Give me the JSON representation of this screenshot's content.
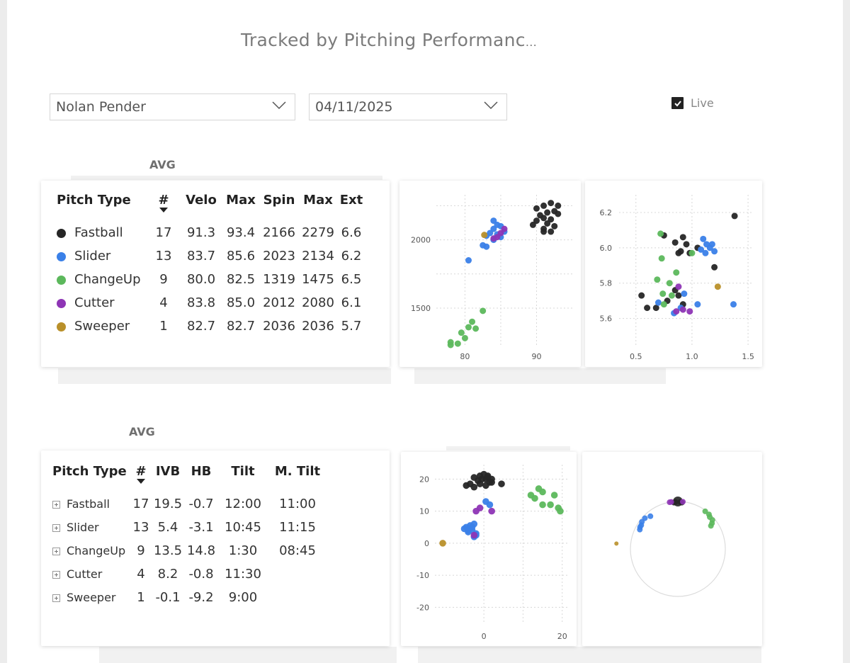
{
  "header": {
    "title": "Tracked by Pitching Performanc",
    "title_ellipsis": "..."
  },
  "filters": {
    "pitcher": "Nolan Pender",
    "date": "04/11/2025",
    "live_label": "Live",
    "live_checked": true
  },
  "colors": {
    "Fastball": "#262626",
    "Slider": "#3a80e8",
    "ChangeUp": "#5cb85c",
    "Cutter": "#8e35b5",
    "Sweeper": "#b9902a"
  },
  "table1": {
    "avg_label": "AVG",
    "headers": [
      "Pitch Type",
      "#",
      "Velo",
      "Max",
      "Spin",
      "Max",
      "Ext"
    ],
    "rows": [
      [
        "Fastball",
        "17",
        "91.3",
        "93.4",
        "2166",
        "2279",
        "6.6"
      ],
      [
        "Slider",
        "13",
        "83.7",
        "85.6",
        "2023",
        "2134",
        "6.2"
      ],
      [
        "ChangeUp",
        "9",
        "80.0",
        "82.5",
        "1319",
        "1475",
        "6.5"
      ],
      [
        "Cutter",
        "4",
        "83.8",
        "85.0",
        "2012",
        "2080",
        "6.1"
      ],
      [
        "Sweeper",
        "1",
        "82.7",
        "82.7",
        "2036",
        "2036",
        "5.7"
      ]
    ]
  },
  "table2": {
    "avg_label": "AVG",
    "headers": [
      "Pitch Type",
      "#",
      "IVB",
      "HB",
      "Tilt",
      "M. Tilt"
    ],
    "rows": [
      [
        "Fastball",
        "17",
        "19.5",
        "-0.7",
        "12:00",
        "11:00"
      ],
      [
        "Slider",
        "13",
        "5.4",
        "-3.1",
        "10:45",
        "11:15"
      ],
      [
        "ChangeUp",
        "9",
        "13.5",
        "14.8",
        "1:30",
        "08:45"
      ],
      [
        "Cutter",
        "4",
        "8.2",
        "-0.8",
        "11:30",
        ""
      ],
      [
        "Sweeper",
        "1",
        "-0.1",
        "-9.2",
        "9:00",
        ""
      ]
    ]
  },
  "chart_data": [
    {
      "type": "scatter",
      "id": "velo-spin",
      "xlim": [
        76,
        95
      ],
      "ylim": [
        1230,
        2330
      ],
      "xticks": [
        "80",
        "90"
      ],
      "yticks": [
        "1500",
        "2000"
      ],
      "xlabel": "",
      "ylabel": "",
      "grid": true,
      "series": [
        {
          "name": "Fastball",
          "points": [
            [
              90,
              2230
            ],
            [
              91,
              2250
            ],
            [
              92,
              2270
            ],
            [
              93,
              2250
            ],
            [
              91.5,
              2200
            ],
            [
              92.5,
              2210
            ],
            [
              90.5,
              2180
            ],
            [
              91,
              2160
            ],
            [
              92,
              2150
            ],
            [
              93,
              2190
            ],
            [
              90,
              2140
            ],
            [
              91.5,
              2120
            ],
            [
              92.5,
              2100
            ],
            [
              91,
              2080
            ],
            [
              92,
              2060
            ],
            [
              89.5,
              2110
            ],
            [
              91,
              2060
            ]
          ]
        },
        {
          "name": "Slider",
          "points": [
            [
              84,
              2140
            ],
            [
              84.5,
              2110
            ],
            [
              85,
              2100
            ],
            [
              84,
              2080
            ],
            [
              83.5,
              2050
            ],
            [
              84.5,
              2040
            ],
            [
              85.5,
              2060
            ],
            [
              83,
              2030
            ],
            [
              84,
              2000
            ],
            [
              85,
              2020
            ],
            [
              82.5,
              1960
            ],
            [
              83,
              1950
            ],
            [
              80.5,
              1850
            ]
          ]
        },
        {
          "name": "ChangeUp",
          "points": [
            [
              82.5,
              1480
            ],
            [
              81,
              1400
            ],
            [
              80.5,
              1360
            ],
            [
              81.5,
              1350
            ],
            [
              79.5,
              1320
            ],
            [
              80,
              1280
            ],
            [
              78,
              1250
            ],
            [
              79,
              1240
            ],
            [
              78,
              1230
            ]
          ]
        },
        {
          "name": "Cutter",
          "points": [
            [
              84,
              2010
            ],
            [
              85,
              2050
            ],
            [
              85.5,
              2080
            ],
            [
              84.5,
              2020
            ]
          ]
        },
        {
          "name": "Sweeper",
          "points": [
            [
              82.7,
              2036
            ]
          ]
        }
      ]
    },
    {
      "type": "scatter",
      "id": "ext-release",
      "xlim": [
        0.35,
        1.55
      ],
      "ylim": [
        5.45,
        6.3
      ],
      "xticks": [
        "0.5",
        "1.0",
        "1.5"
      ],
      "yticks": [
        "5.6",
        "5.8",
        "6.0",
        "6.2"
      ],
      "xlabel": "",
      "ylabel": "",
      "grid": true,
      "series": [
        {
          "name": "Fastball",
          "points": [
            [
              0.75,
              6.07
            ],
            [
              0.85,
              6.03
            ],
            [
              0.92,
              6.06
            ],
            [
              0.95,
              6.02
            ],
            [
              0.9,
              5.98
            ],
            [
              0.98,
              5.97
            ],
            [
              1.05,
              6.0
            ],
            [
              0.88,
              5.97
            ],
            [
              1.2,
              5.89
            ],
            [
              1.38,
              6.18
            ],
            [
              0.55,
              5.73
            ],
            [
              0.6,
              5.66
            ],
            [
              0.68,
              5.66
            ],
            [
              0.85,
              5.76
            ],
            [
              0.88,
              5.73
            ],
            [
              0.92,
              5.68
            ],
            [
              0.78,
              5.7
            ]
          ]
        },
        {
          "name": "Slider",
          "points": [
            [
              1.1,
              6.05
            ],
            [
              1.13,
              6.02
            ],
            [
              1.16,
              6.0
            ],
            [
              1.18,
              6.02
            ],
            [
              1.2,
              5.98
            ],
            [
              1.08,
              5.99
            ],
            [
              1.12,
              5.97
            ],
            [
              0.93,
              5.74
            ],
            [
              0.9,
              5.66
            ],
            [
              0.84,
              5.63
            ],
            [
              0.7,
              5.69
            ],
            [
              1.05,
              5.68
            ],
            [
              1.37,
              5.68
            ]
          ]
        },
        {
          "name": "ChangeUp",
          "points": [
            [
              0.72,
              6.08
            ],
            [
              0.73,
              5.94
            ],
            [
              0.69,
              5.82
            ],
            [
              0.74,
              5.74
            ],
            [
              0.75,
              5.68
            ],
            [
              0.82,
              5.73
            ],
            [
              0.86,
              5.86
            ],
            [
              0.8,
              5.8
            ],
            [
              1.0,
              5.97
            ]
          ]
        },
        {
          "name": "Cutter",
          "points": [
            [
              0.86,
              5.64
            ],
            [
              0.92,
              5.65
            ],
            [
              0.98,
              5.64
            ],
            [
              0.88,
              5.78
            ]
          ]
        },
        {
          "name": "Sweeper",
          "points": [
            [
              1.23,
              5.78
            ]
          ]
        }
      ]
    },
    {
      "type": "scatter",
      "id": "movement",
      "xlim": [
        -12.5,
        21.5
      ],
      "ylim": [
        -25,
        24.5
      ],
      "xticks": [
        "0",
        "20"
      ],
      "yticks": [
        "-20",
        "-10",
        "0",
        "10",
        "20"
      ],
      "xlabel": "",
      "ylabel": "",
      "grid": true,
      "series": [
        {
          "name": "Fastball",
          "points": [
            [
              -1,
              21
            ],
            [
              0,
              21.5
            ],
            [
              -2.5,
              20.5
            ],
            [
              1,
              20.5
            ],
            [
              0.5,
              20
            ],
            [
              2,
              20
            ],
            [
              -1.5,
              19.5
            ],
            [
              1.5,
              19
            ],
            [
              -3.5,
              18.5
            ],
            [
              -1,
              18.5
            ],
            [
              0.5,
              18
            ],
            [
              -2.5,
              17.5
            ],
            [
              4.5,
              18.5
            ],
            [
              -4.5,
              18
            ],
            [
              2,
              19
            ],
            [
              -0.5,
              20
            ],
            [
              1,
              21
            ]
          ]
        },
        {
          "name": "Slider",
          "points": [
            [
              -4,
              4
            ],
            [
              -4.5,
              5
            ],
            [
              -5,
              4.5
            ],
            [
              -3.5,
              5.5
            ],
            [
              -2.5,
              6
            ],
            [
              -3,
              4
            ],
            [
              -2,
              3
            ],
            [
              -2.5,
              2
            ],
            [
              -3,
              5
            ],
            [
              -4,
              3.5
            ],
            [
              0.5,
              13
            ],
            [
              1.5,
              12
            ],
            [
              -2,
              2.5
            ]
          ]
        },
        {
          "name": "ChangeUp",
          "points": [
            [
              14,
              17
            ],
            [
              15,
              16
            ],
            [
              12,
              15
            ],
            [
              13,
              14
            ],
            [
              15,
              12
            ],
            [
              17,
              12
            ],
            [
              18,
              15
            ],
            [
              19,
              11
            ],
            [
              19.5,
              10
            ]
          ]
        },
        {
          "name": "Cutter",
          "points": [
            [
              -1,
              11
            ],
            [
              -2,
              10
            ],
            [
              2,
              10
            ],
            [
              -2.5,
              2.5
            ]
          ]
        },
        {
          "name": "Sweeper",
          "points": [
            [
              -10.5,
              0
            ]
          ]
        }
      ]
    },
    {
      "type": "scatter",
      "id": "tilt-circle",
      "xlabel": "",
      "ylabel": "",
      "grid": false,
      "series": [
        {
          "name": "Fastball",
          "points": [
            [
              0,
              1
            ],
            [
              3,
              0.99
            ],
            [
              -3,
              0.99
            ],
            [
              5,
              0.98
            ],
            [
              -5,
              0.98
            ]
          ]
        },
        {
          "name": "Slider",
          "points": [
            [
              -47,
              0.95
            ],
            [
              -53,
              0.95
            ],
            [
              -57,
              0.92
            ],
            [
              -60,
              0.92
            ],
            [
              -63,
              0.9
            ],
            [
              -40,
              0.9
            ]
          ]
        },
        {
          "name": "ChangeUp",
          "points": [
            [
              36,
              0.98
            ],
            [
              42,
              0.98
            ],
            [
              45,
              0.95
            ],
            [
              50,
              0.95
            ],
            [
              53,
              0.9
            ],
            [
              55,
              0.85
            ]
          ]
        },
        {
          "name": "Cutter",
          "points": [
            [
              -10,
              1
            ],
            [
              -8,
              1
            ],
            [
              6,
              1
            ]
          ]
        },
        {
          "name": "Sweeper",
          "points": [
            [
              -85,
              1.3
            ]
          ]
        }
      ]
    }
  ]
}
